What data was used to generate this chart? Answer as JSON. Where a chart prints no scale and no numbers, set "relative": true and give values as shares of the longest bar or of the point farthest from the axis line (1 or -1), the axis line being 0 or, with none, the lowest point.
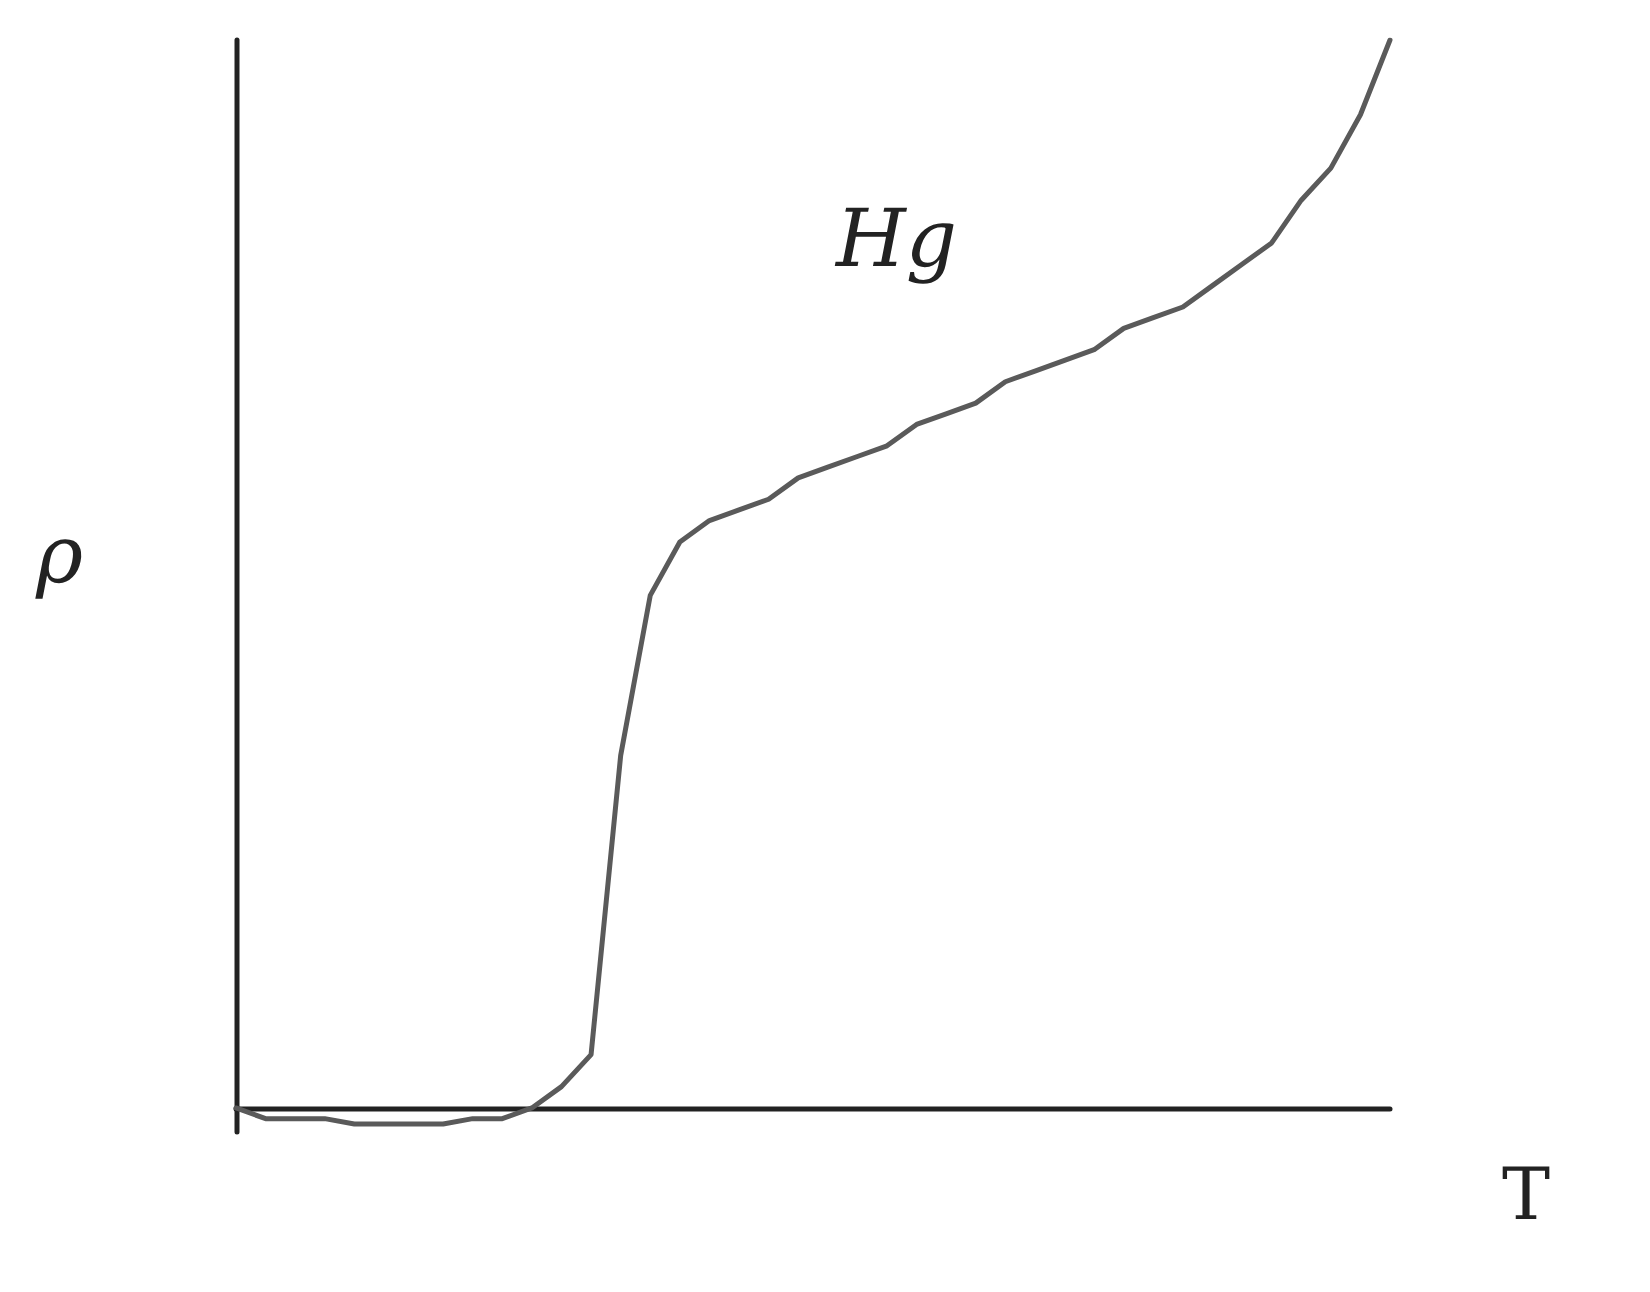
{
  "chart_data": {
    "type": "line",
    "relative": true,
    "xlabel": "T",
    "ylabel": "ρ",
    "annotations": [
      "Hg"
    ],
    "marker": "none",
    "line_style": "solid",
    "categories": [
      null,
      null,
      null,
      null,
      null,
      null,
      null,
      null,
      null,
      null,
      null,
      null,
      null,
      null,
      null,
      null,
      null,
      null,
      null,
      null,
      null,
      null,
      null,
      null,
      null,
      null,
      null,
      null,
      null,
      null,
      null,
      null,
      null,
      null,
      null,
      null,
      null,
      null,
      null,
      null
    ],
    "series": [
      {
        "color": "#5a5a5a",
        "values": [
          0,
          -0.01,
          -0.01,
          -0.01,
          -0.015,
          -0.015,
          -0.015,
          -0.015,
          -0.01,
          -0.01,
          0,
          0.02,
          0.05,
          0.33,
          0.48,
          0.53,
          0.55,
          0.56,
          0.57,
          0.59,
          0.6,
          0.61,
          0.62,
          0.64,
          0.65,
          0.66,
          0.68,
          0.69,
          0.7,
          0.71,
          0.73,
          0.74,
          0.75,
          0.77,
          0.79,
          0.81,
          0.85,
          0.88,
          0.93,
          1
        ]
      }
    ]
  }
}
